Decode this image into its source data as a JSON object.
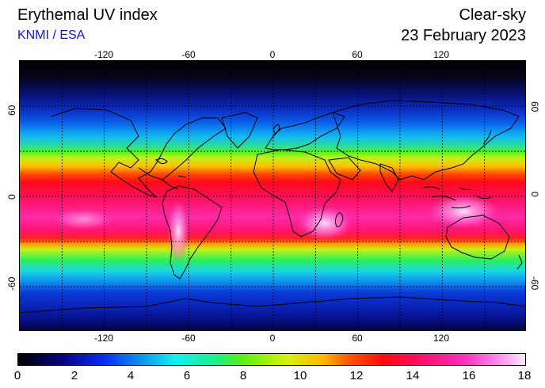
{
  "header": {
    "title": "Erythemal UV index",
    "source": "KNMI / ESA",
    "condition": "Clear-sky",
    "date": "23 February 2023"
  },
  "map": {
    "longitude_ticks": [
      "-120",
      "-60",
      "0",
      "60",
      "120"
    ],
    "latitude_ticks": [
      "60",
      "0",
      "-60"
    ],
    "longitude_range": [
      -180,
      180
    ],
    "latitude_range": [
      -90,
      90
    ],
    "grid": true
  },
  "colorbar": {
    "labels": [
      "0",
      "2",
      "4",
      "6",
      "8",
      "10",
      "12",
      "14",
      "16",
      "18"
    ],
    "range": [
      0,
      18
    ]
  }
}
